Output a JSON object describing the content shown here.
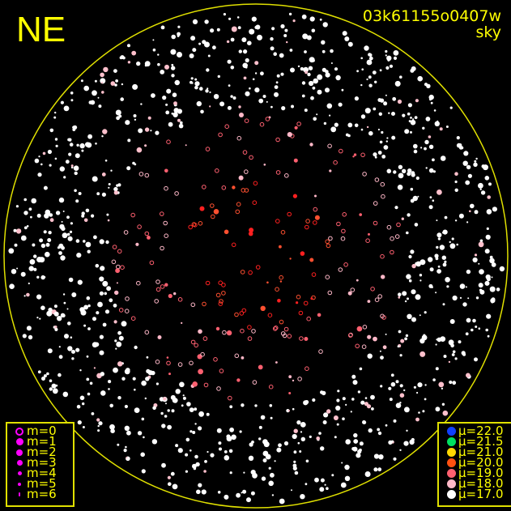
{
  "header": {
    "orientation": "NE",
    "frame_id": "03k61155o0407w",
    "mode": "sky"
  },
  "colors": {
    "frame": "#ffff00",
    "magnitude_symbol": "#ff00ff"
  },
  "magnitude_legend": [
    {
      "label": "m=0",
      "style": "ring"
    },
    {
      "label": "m=1"
    },
    {
      "label": "m=2"
    },
    {
      "label": "m=3"
    },
    {
      "label": "m=4"
    },
    {
      "label": "m=5"
    },
    {
      "label": "m=6"
    }
  ],
  "brightness_legend": [
    {
      "label": "μ=22.0",
      "color": "#1040ff"
    },
    {
      "label": "μ=21.5",
      "color": "#00e060"
    },
    {
      "label": "μ=21.0",
      "color": "#ffd800"
    },
    {
      "label": "μ=20.0",
      "color": "#ff5010"
    },
    {
      "label": "μ=19.0",
      "color": "#ff6070"
    },
    {
      "label": "μ=18.0",
      "color": "#ffb8c8"
    },
    {
      "label": "μ=17.0",
      "color": "#ffffff"
    }
  ]
}
